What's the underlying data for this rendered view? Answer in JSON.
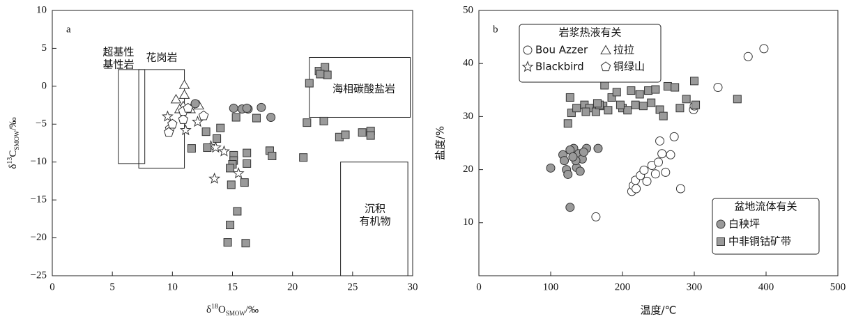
{
  "chart_data": [
    {
      "type": "scatter",
      "label": "a",
      "xlabel": {
        "prefix": "δ",
        "sup": "18",
        "main": "O",
        "sub": "SMOW",
        "suffix": "/‰"
      },
      "ylabel": {
        "prefix": "δ",
        "sup": "13",
        "main": "C",
        "sub": "SMOW",
        "suffix": "/‰"
      },
      "xlim": [
        0,
        30
      ],
      "xticks": [
        0,
        5,
        10,
        15,
        20,
        25,
        30
      ],
      "ylim": [
        -25,
        10
      ],
      "yticks": [
        {
          "value": -25,
          "label": "−25"
        },
        {
          "value": -20,
          "label": "−20"
        },
        {
          "value": -15,
          "label": "−15"
        },
        {
          "value": -10,
          "label": "−10"
        },
        {
          "value": -5,
          "label": "−5"
        },
        0,
        5,
        10
      ],
      "regions": [
        {
          "lines": [
            "超基性",
            "基性岩"
          ],
          "x": [
            5.5,
            7.7
          ],
          "y": [
            -10.2,
            2.2
          ]
        },
        {
          "lines": [
            "花岗岩"
          ],
          "x": [
            7.2,
            11.0
          ],
          "y": [
            -10.8,
            2.2
          ]
        },
        {
          "lines": [
            "海相碳酸盐岩"
          ],
          "x": [
            21.4,
            29.8
          ],
          "y": [
            -4.1,
            3.8
          ]
        },
        {
          "lines": [
            "沉积",
            "有机物"
          ],
          "x": [
            24.0,
            29.6
          ],
          "y": [
            -25,
            -10.0
          ]
        }
      ],
      "series": [
        {
          "marker": "triangle",
          "color": "#ffffff",
          "x": [
            11.0,
            11.0,
            10.3,
            10.9,
            10.6,
            12.2,
            11.5
          ],
          "values": [
            0.2,
            -1.1,
            -1.7,
            -2.6,
            -3.0,
            -2.5,
            -3.0
          ]
        },
        {
          "marker": "star",
          "color": "#ffffff",
          "x": [
            9.6,
            11.1,
            12.1,
            13.2,
            13.6,
            14.3,
            13.5,
            15.5
          ],
          "values": [
            -4.0,
            -5.8,
            -4.7,
            -7.9,
            -8.1,
            -8.6,
            -12.2,
            -11.5
          ]
        },
        {
          "marker": "pentagon",
          "color": "#ffffff",
          "x": [
            9.8,
            9.7,
            10.9,
            10.9,
            11.3,
            12.6,
            10.0
          ],
          "values": [
            -5.6,
            -6.1,
            -4.4,
            -3.3,
            -2.9,
            -3.9,
            -5.0
          ]
        },
        {
          "marker": "circle",
          "color": "#9a9a9a",
          "x": [
            11.9,
            15.1,
            15.8,
            16.3,
            17.4,
            18.2,
            16.2
          ],
          "values": [
            -2.3,
            -2.9,
            -3.0,
            -3.0,
            -2.8,
            -4.1,
            -2.9
          ]
        },
        {
          "marker": "square",
          "color": "#9a9a9a",
          "x": [
            21.4,
            22.2,
            22.7,
            22.9,
            22.3,
            21.2,
            22.6,
            12.8,
            14.0,
            13.7,
            11.6,
            12.9,
            15.3,
            17.0,
            16.2,
            18.1,
            18.3,
            15.1,
            15.1,
            16.2,
            15.0,
            14.9,
            16.0,
            14.8,
            15.4,
            14.8,
            14.6,
            16.1,
            20.9,
            23.9,
            24.4,
            25.8,
            26.5,
            26.5
          ],
          "values": [
            0.4,
            2.0,
            2.5,
            1.5,
            1.6,
            -4.8,
            -4.6,
            -6.0,
            -5.5,
            -6.9,
            -8.2,
            -8.1,
            -4.1,
            -4.2,
            -8.8,
            -8.5,
            -9.2,
            -9.1,
            -9.8,
            -10.2,
            -10.3,
            -13.0,
            -12.7,
            -10.8,
            -16.5,
            -18.3,
            -20.6,
            -20.7,
            -9.4,
            -6.7,
            -6.4,
            -6.1,
            -5.9,
            -6.5
          ]
        }
      ]
    },
    {
      "type": "scatter",
      "label": "b",
      "xlabel": "温度/℃",
      "ylabel": "盐度/%",
      "xlim": [
        0,
        500
      ],
      "xticks": [
        0,
        100,
        200,
        300,
        400,
        500
      ],
      "ylim": [
        0,
        50
      ],
      "yticks": [
        10,
        20,
        30,
        40,
        50
      ],
      "series_groups": [
        {
          "title": "岩浆热液有关",
          "series": [
            {
              "name": "Bou Azzer",
              "marker": "circle",
              "color": "#ffffff",
              "x": [
                163,
                281,
                333,
                375,
                397,
                299,
                300,
                213,
                215,
                218,
                225,
                230,
                241,
                250,
                252,
                267,
                272,
                260,
                234,
                246,
                255,
                219
              ],
              "values": [
                11.1,
                16.4,
                35.5,
                41.3,
                42.8,
                31.3,
                32.0,
                15.9,
                17.0,
                18.0,
                18.9,
                19.9,
                20.8,
                21.4,
                25.4,
                22.8,
                26.2,
                19.5,
                17.8,
                19.2,
                23.0,
                16.4
              ]
            },
            {
              "name": "拉拉",
              "marker": "triangle",
              "color": "#ffffff",
              "x": [],
              "values": []
            },
            {
              "name": "Blackbird",
              "marker": "star",
              "color": "#ffffff",
              "x": [],
              "values": []
            },
            {
              "name": "铜绿山",
              "marker": "pentagon",
              "color": "#ffffff",
              "x": [],
              "values": []
            }
          ]
        },
        {
          "title": "盆地流体有关",
          "series": [
            {
              "name": "白秧坪",
              "marker": "circle",
              "color": "#9a9a9a",
              "x": [
                100,
                127,
                117,
                119,
                122,
                124,
                132,
                139,
                136,
                144,
                150,
                166,
                127,
                135,
                141,
                131,
                146
              ],
              "values": [
                20.3,
                12.9,
                22.8,
                21.7,
                20.0,
                19.1,
                24.0,
                23.0,
                20.4,
                22.0,
                24.0,
                24.0,
                23.7,
                21.7,
                19.7,
                22.4,
                23.3
              ]
            },
            {
              "name": "中非铜钴矿带",
              "marker": "square",
              "color": "#9a9a9a",
              "x": [
                127,
                124,
                129,
                147,
                154,
                163,
                173,
                175,
                185,
                192,
                200,
                212,
                224,
                229,
                236,
                246,
                252,
                257,
                263,
                273,
                280,
                289,
                300,
                302,
                360,
                149,
                168,
                207,
                218,
                240,
                136,
                165,
                180,
                197
              ],
              "values": [
                33.6,
                28.7,
                30.7,
                32.2,
                31.6,
                30.9,
                32.0,
                35.9,
                33.6,
                34.6,
                31.6,
                34.9,
                34.2,
                32.0,
                34.9,
                35.1,
                31.3,
                30.1,
                35.7,
                35.5,
                31.6,
                33.3,
                36.7,
                32.2,
                33.3,
                30.9,
                32.2,
                31.2,
                32.2,
                32.6,
                31.6,
                32.5,
                31.2,
                32.2
              ]
            }
          ]
        }
      ]
    }
  ]
}
